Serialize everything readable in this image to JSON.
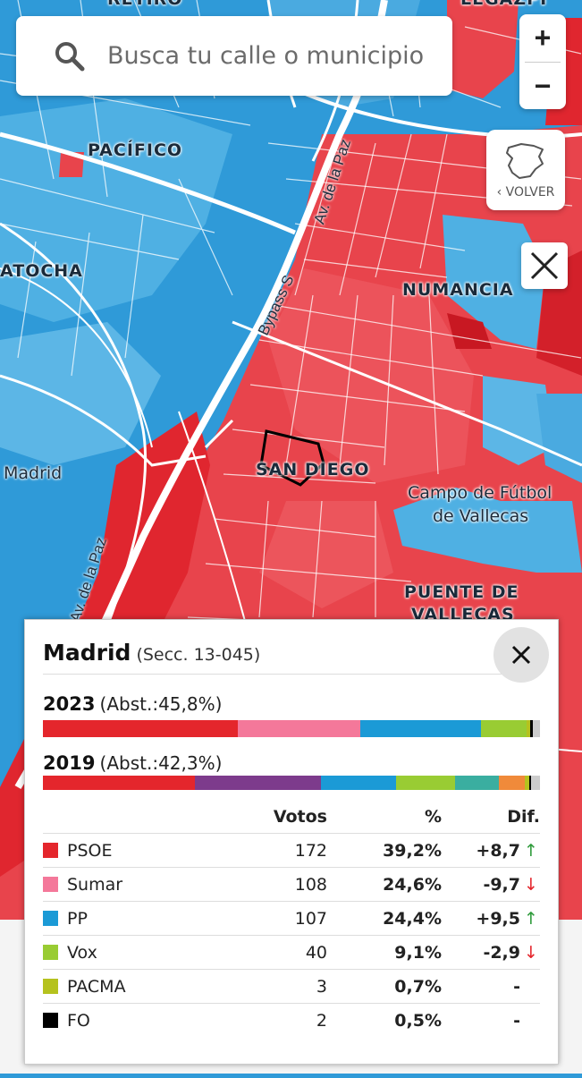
{
  "search": {
    "placeholder": "Busca tu calle o municipio",
    "icon": "search-icon"
  },
  "zoom": {
    "in_label": "+",
    "out_label": "−"
  },
  "volver": {
    "label": "‹ VOLVER"
  },
  "map": {
    "colors": {
      "psoe_area": "#e8424a",
      "pp_area": "#33a0dc",
      "road": "#ffffff"
    },
    "labels": {
      "retiro": "RETIRO",
      "legazpi": "LEGAZPI",
      "pacifico": "PACÍFICO",
      "atocha": "ATOCHA",
      "numancia": "NUMANCIA",
      "san_diego": "SAN DIEGO",
      "campo_futbol": "Campo de Fútbol",
      "de_vallecas": "de Vallecas",
      "puente_de": "PUENTE DE",
      "vallecas": "VALLECAS",
      "madrid": "Madrid",
      "av_paz_top": "Av. de la Paz",
      "av_paz_bottom": "Av. de la Paz",
      "bypass": "Bypass S"
    }
  },
  "panel": {
    "title": "Madrid",
    "subtitle": "(Secc. 13-045)",
    "y2023": {
      "year": "2023",
      "abst": "(Abst.:45,8%)",
      "segments": [
        {
          "color": "#e4262c",
          "value": 39.2
        },
        {
          "color": "#f4789a",
          "value": 24.6
        },
        {
          "color": "#1b9ad6",
          "value": 24.4
        },
        {
          "color": "#99cc33",
          "value": 9.1
        },
        {
          "color": "#b5c21e",
          "value": 0.7
        },
        {
          "color": "#000000",
          "value": 0.5
        },
        {
          "color": "#cccccc",
          "value": 1.5
        }
      ]
    },
    "y2019": {
      "year": "2019",
      "abst": "(Abst.:42,3%)",
      "segments": [
        {
          "color": "#e4262c",
          "value": 30.5
        },
        {
          "color": "#7d3b8c",
          "value": 25.5
        },
        {
          "color": "#1b9ad6",
          "value": 15.0
        },
        {
          "color": "#99cc33",
          "value": 12.0
        },
        {
          "color": "#3aaea0",
          "value": 8.8
        },
        {
          "color": "#f08a3a",
          "value": 5.2
        },
        {
          "color": "#b5c21e",
          "value": 0.8
        },
        {
          "color": "#000000",
          "value": 0.5
        },
        {
          "color": "#cccccc",
          "value": 1.7
        }
      ]
    },
    "headers": {
      "votos": "Votos",
      "pct": "%",
      "dif": "Dif."
    },
    "rows": [
      {
        "party": "PSOE",
        "color": "#e4262c",
        "votos": "172",
        "pct": "39,2%",
        "dif": "+8,7",
        "trend": "up"
      },
      {
        "party": "Sumar",
        "color": "#f4789a",
        "votos": "108",
        "pct": "24,6%",
        "dif": "-9,7",
        "trend": "down"
      },
      {
        "party": "PP",
        "color": "#1b9ad6",
        "votos": "107",
        "pct": "24,4%",
        "dif": "+9,5",
        "trend": "up"
      },
      {
        "party": "Vox",
        "color": "#99cc33",
        "votos": "40",
        "pct": "9,1%",
        "dif": "-2,9",
        "trend": "down"
      },
      {
        "party": "PACMA",
        "color": "#b5c21e",
        "votos": "3",
        "pct": "0,7%",
        "dif": "-",
        "trend": "none"
      },
      {
        "party": "FO",
        "color": "#000000",
        "votos": "2",
        "pct": "0,5%",
        "dif": "-",
        "trend": "none"
      }
    ]
  }
}
